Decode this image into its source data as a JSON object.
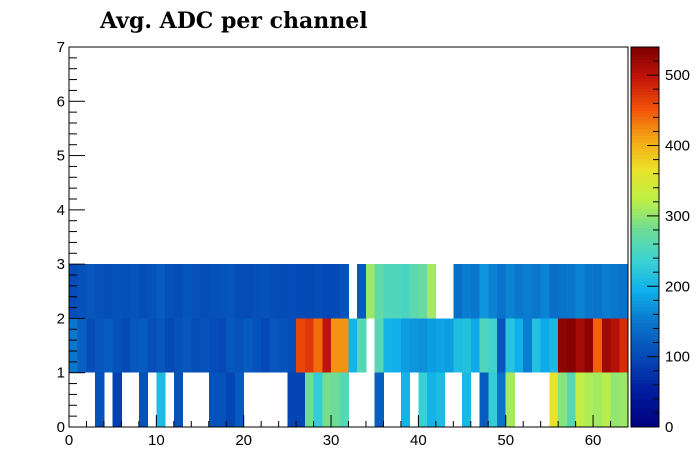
{
  "chart_data": {
    "type": "heatmap",
    "title": "Avg. ADC per channel",
    "xlabel": "",
    "ylabel": "",
    "xlim": [
      0,
      64
    ],
    "ylim": [
      0,
      7
    ],
    "zlim": [
      0,
      540
    ],
    "bin_width": 1,
    "xticks": [
      "0",
      "10",
      "20",
      "30",
      "40",
      "50",
      "60"
    ],
    "yticks": [
      "0",
      "1",
      "2",
      "3",
      "4",
      "5",
      "6",
      "7"
    ],
    "colorbar_ticks": [
      "0",
      "100",
      "200",
      "300",
      "400",
      "500"
    ],
    "grid": false,
    "colormap": "kBird-like rainbow (dark blue to dark red)",
    "rows": [
      {
        "y": [
          0,
          1
        ],
        "values": [
          0,
          0,
          0,
          110,
          0,
          90,
          0,
          0,
          110,
          0,
          210,
          0,
          110,
          0,
          0,
          0,
          110,
          110,
          95,
          120,
          0,
          0,
          0,
          0,
          0,
          95,
          95,
          280,
          230,
          285,
          280,
          260,
          0,
          0,
          0,
          125,
          0,
          0,
          200,
          0,
          235,
          200,
          210,
          0,
          0,
          205,
          0,
          120,
          230,
          145,
          310,
          0,
          0,
          0,
          0,
          365,
          295,
          260,
          330,
          315,
          310,
          320,
          300,
          305
        ]
      },
      {
        "y": [
          1,
          2
        ],
        "values": [
          150,
          125,
          105,
          115,
          120,
          110,
          100,
          115,
          120,
          105,
          115,
          100,
          110,
          115,
          105,
          110,
          105,
          100,
          115,
          110,
          120,
          110,
          100,
          115,
          110,
          105,
          460,
          470,
          440,
          500,
          420,
          420,
          200,
          260,
          0,
          260,
          200,
          195,
          180,
          175,
          170,
          180,
          185,
          180,
          210,
          215,
          190,
          255,
          240,
          115,
          220,
          195,
          155,
          215,
          190,
          205,
          530,
          535,
          515,
          530,
          445,
          520,
          505,
          480
        ]
      },
      {
        "y": [
          2,
          3
        ],
        "values": [
          105,
          110,
          115,
          110,
          105,
          110,
          108,
          112,
          106,
          110,
          120,
          108,
          105,
          112,
          110,
          106,
          108,
          110,
          112,
          105,
          104,
          108,
          110,
          106,
          104,
          105,
          100,
          102,
          104,
          100,
          102,
          110,
          0,
          118,
          305,
          270,
          255,
          255,
          250,
          265,
          275,
          310,
          0,
          0,
          140,
          155,
          150,
          175,
          160,
          145,
          160,
          150,
          155,
          150,
          160,
          140,
          145,
          150,
          160,
          150,
          145,
          155,
          150,
          145
        ]
      }
    ]
  }
}
